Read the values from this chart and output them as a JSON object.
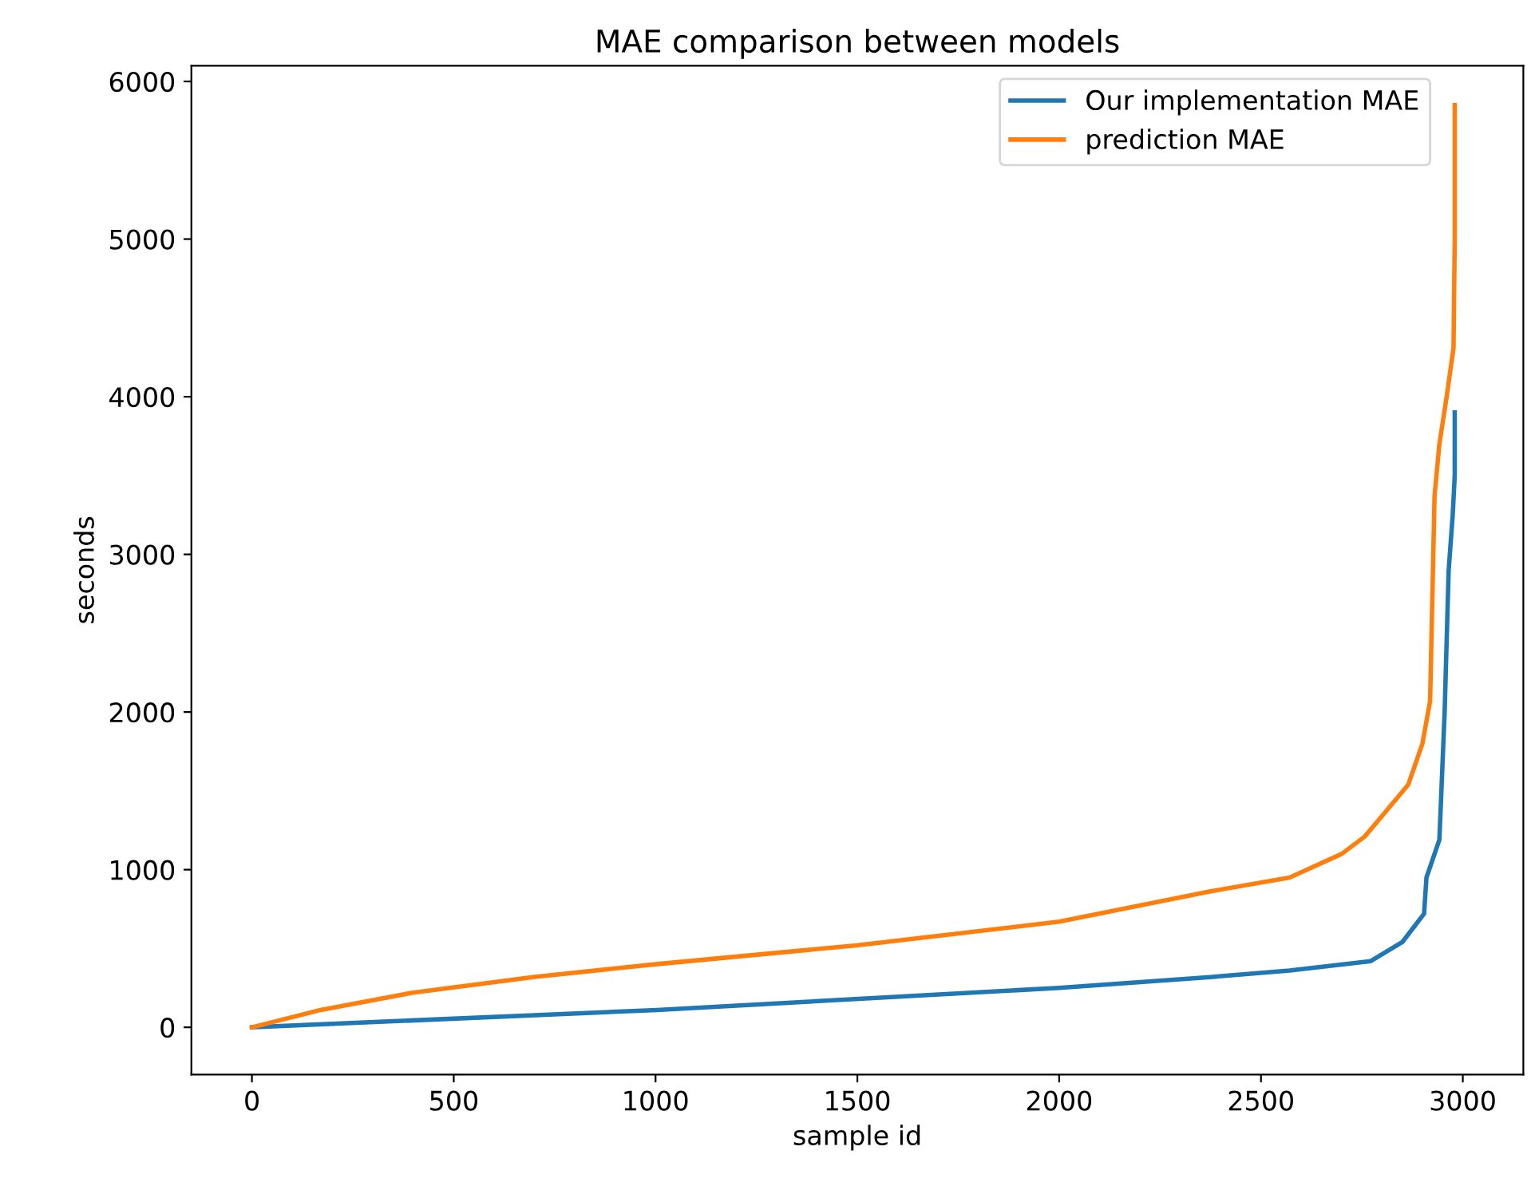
{
  "chart_data": {
    "type": "line",
    "title": "MAE comparison between models",
    "xlabel": "sample id",
    "ylabel": "seconds",
    "xlim": [
      -150,
      3150
    ],
    "ylim": [
      -300,
      6100
    ],
    "xticks": [
      0,
      500,
      1000,
      1500,
      2000,
      2500,
      3000
    ],
    "yticks": [
      0,
      1000,
      2000,
      3000,
      4000,
      5000,
      6000
    ],
    "legend": "top right",
    "grid": false,
    "series": [
      {
        "name": "Our implementation MAE",
        "color": "#1f77b4",
        "x": [
          0,
          1003,
          2000,
          2381,
          2571,
          2772,
          2850,
          2904,
          2910,
          2942,
          2955,
          2965,
          2975,
          2980,
          2980
        ],
        "values": [
          0,
          110,
          250,
          320,
          360,
          420,
          540,
          720,
          950,
          1190,
          2000,
          2900,
          3250,
          3500,
          3900
        ]
      },
      {
        "name": "prediction MAE",
        "color": "#ff7f0e",
        "x": [
          0,
          170,
          399,
          700,
          1000,
          1498,
          2000,
          2370,
          2571,
          2700,
          2757,
          2803,
          2865,
          2900,
          2919,
          2930,
          2942,
          2960,
          2977,
          2980,
          2980
        ],
        "values": [
          0,
          110,
          220,
          320,
          400,
          520,
          670,
          860,
          950,
          1100,
          1210,
          1350,
          1540,
          1800,
          2070,
          3370,
          3700,
          4000,
          4310,
          5000,
          5850
        ]
      }
    ]
  }
}
